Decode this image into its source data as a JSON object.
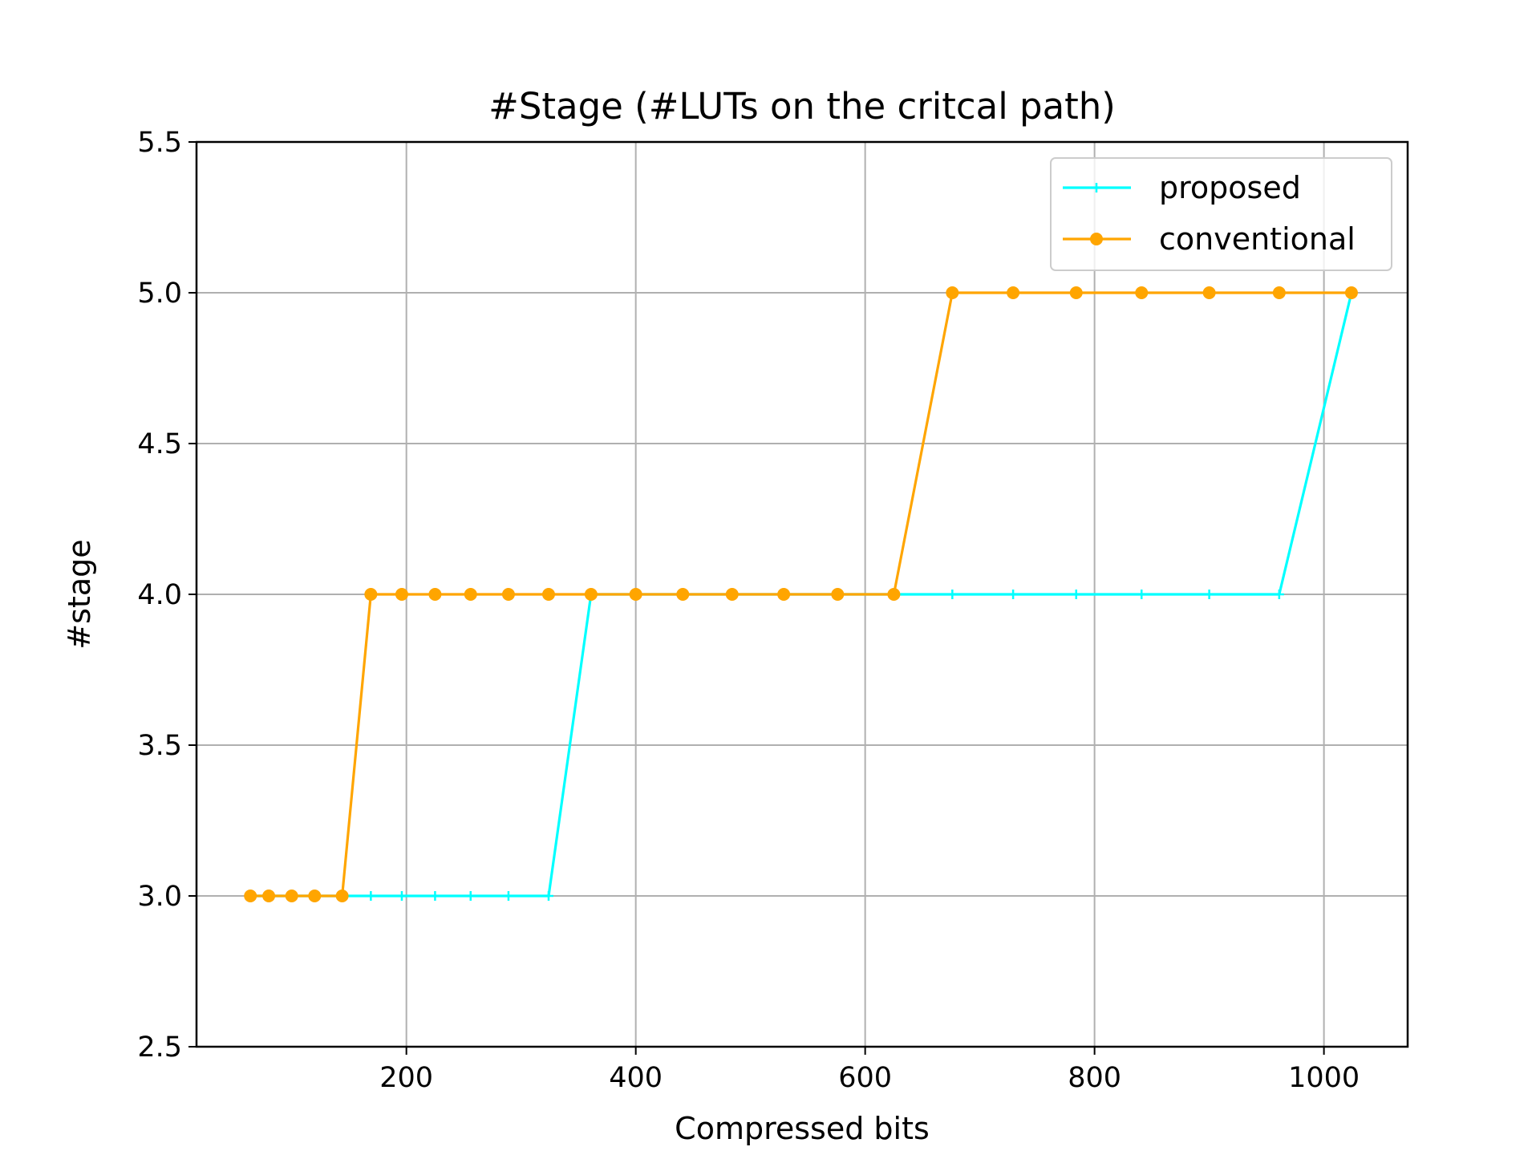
{
  "chart_data": {
    "type": "line",
    "title": "#Stage (#LUTs on the critcal path)",
    "xlabel": "Compressed bits",
    "ylabel": "#stage",
    "xlim": [
      17,
      1073
    ],
    "ylim": [
      2.5,
      5.5
    ],
    "xticks": [
      200,
      400,
      600,
      800,
      1000
    ],
    "yticks": [
      2.5,
      3.0,
      3.5,
      4.0,
      4.5,
      5.0,
      5.5
    ],
    "xtick_labels": [
      "200",
      "400",
      "600",
      "800",
      "1000"
    ],
    "ytick_labels": [
      "2.5",
      "3.0",
      "3.5",
      "4.0",
      "4.5",
      "5.0",
      "5.5"
    ],
    "grid": true,
    "legend_position": "top-right",
    "series": [
      {
        "name": "proposed",
        "color": "#00ffff",
        "marker": "plus",
        "x": [
          64,
          80,
          100,
          120,
          144,
          169,
          196,
          225,
          256,
          289,
          324,
          361,
          400,
          441,
          484,
          529,
          576,
          625,
          676,
          729,
          784,
          841,
          900,
          961,
          1024
        ],
        "y": [
          3,
          3,
          3,
          3,
          3,
          3,
          3,
          3,
          3,
          3,
          3,
          4,
          4,
          4,
          4,
          4,
          4,
          4,
          4,
          4,
          4,
          4,
          4,
          4,
          5
        ]
      },
      {
        "name": "conventional",
        "color": "#ffa500",
        "marker": "circle",
        "x": [
          64,
          80,
          100,
          120,
          144,
          169,
          196,
          225,
          256,
          289,
          324,
          361,
          400,
          441,
          484,
          529,
          576,
          625,
          676,
          729,
          784,
          841,
          900,
          961,
          1024
        ],
        "y": [
          3,
          3,
          3,
          3,
          3,
          4,
          4,
          4,
          4,
          4,
          4,
          4,
          4,
          4,
          4,
          4,
          4,
          4,
          5,
          5,
          5,
          5,
          5,
          5,
          5
        ]
      }
    ]
  }
}
